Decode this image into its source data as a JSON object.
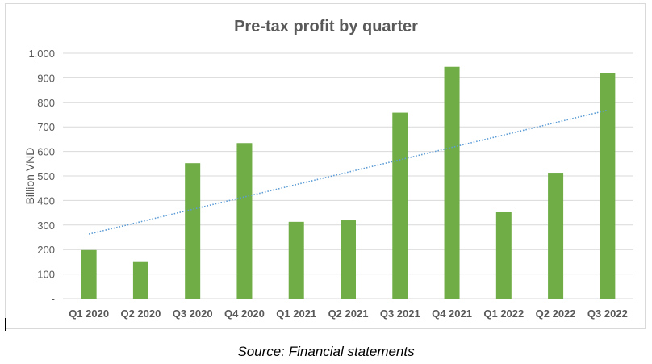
{
  "chart_data": {
    "type": "bar",
    "title": "Pre-tax profit by quarter",
    "xlabel": "",
    "ylabel": "Billion VND",
    "ylim": [
      0,
      1000
    ],
    "yticks": [
      0,
      100,
      200,
      300,
      400,
      500,
      600,
      700,
      800,
      900,
      1000
    ],
    "ytick_labels": [
      "-",
      "100",
      "200",
      "300",
      "400",
      "500",
      "600",
      "700",
      "800",
      "900",
      "1,000"
    ],
    "categories": [
      "Q1 2020",
      "Q2 2020",
      "Q3 2020",
      "Q4 2020",
      "Q1 2021",
      "Q2 2021",
      "Q3 2021",
      "Q4 2021",
      "Q1 2022",
      "Q2 2022",
      "Q3 2022"
    ],
    "values": [
      198,
      149,
      552,
      634,
      313,
      319,
      758,
      945,
      352,
      513,
      919
    ],
    "trendline": {
      "type": "linear",
      "style": "dotted",
      "start": 263,
      "end": 768
    },
    "grid": true,
    "colors": {
      "bar": "#70ad47",
      "trend": "#5b9bd5",
      "grid": "#d9d9d9",
      "text": "#595959"
    }
  },
  "caption": "Source: Financial statements"
}
